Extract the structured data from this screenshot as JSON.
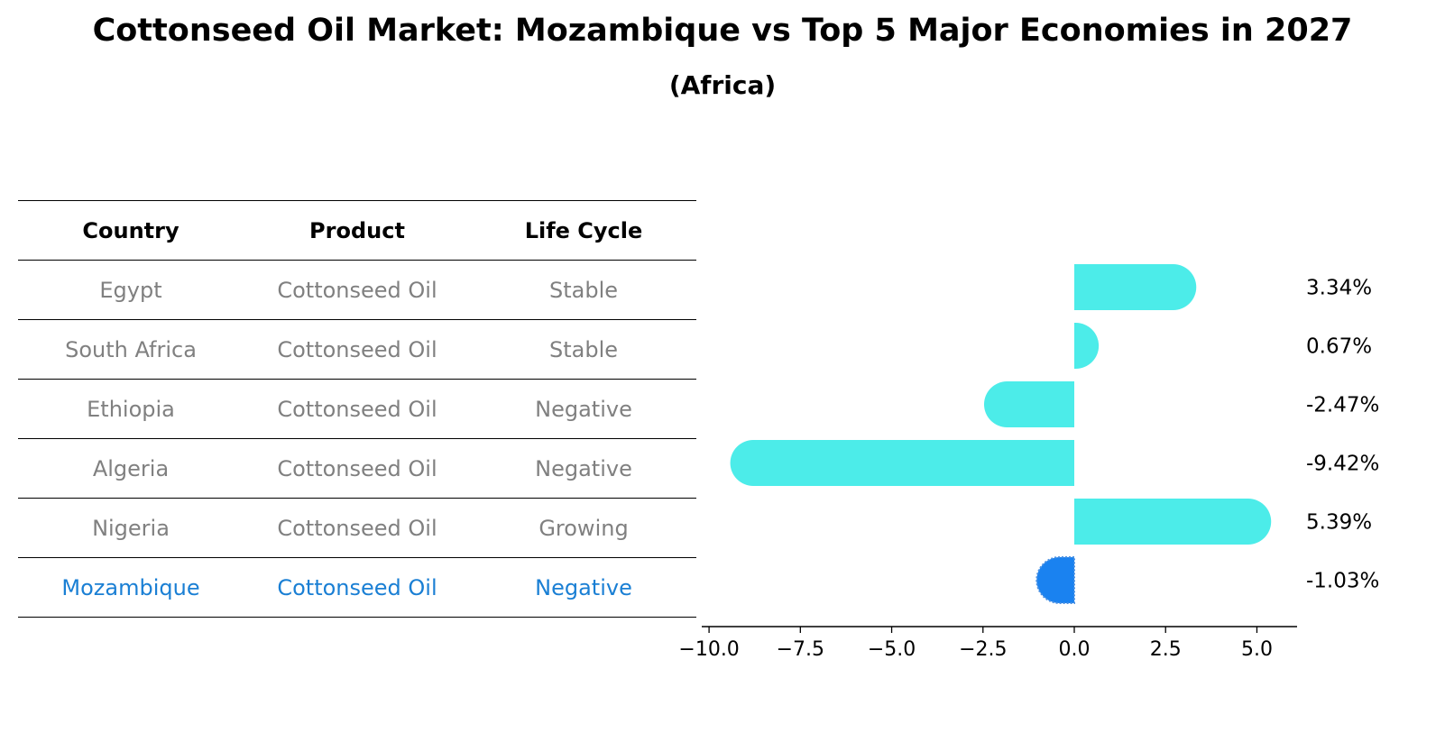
{
  "title": "Cottonseed Oil Market: Mozambique vs Top 5 Major Economies in 2027",
  "subtitle": "(Africa)",
  "table": {
    "headers": [
      "Country",
      "Product",
      "Life Cycle"
    ],
    "rows": [
      {
        "country": "Egypt",
        "product": "Cottonseed Oil",
        "life_cycle": "Stable"
      },
      {
        "country": "South Africa",
        "product": "Cottonseed Oil",
        "life_cycle": "Stable"
      },
      {
        "country": "Ethiopia",
        "product": "Cottonseed Oil",
        "life_cycle": "Negative"
      },
      {
        "country": "Algeria",
        "product": "Cottonseed Oil",
        "life_cycle": "Negative"
      },
      {
        "country": "Nigeria",
        "product": "Cottonseed Oil",
        "life_cycle": "Growing"
      },
      {
        "country": "Mozambique",
        "product": "Cottonseed Oil",
        "life_cycle": "Negative"
      }
    ]
  },
  "chart_data": {
    "type": "bar",
    "orientation": "horizontal",
    "categories": [
      "Egypt",
      "South Africa",
      "Ethiopia",
      "Algeria",
      "Nigeria",
      "Mozambique"
    ],
    "values": [
      3.34,
      0.67,
      -2.47,
      -9.42,
      5.39,
      -1.03
    ],
    "value_labels": [
      "3.34%",
      "0.67%",
      "-2.47%",
      "-9.42%",
      "5.39%",
      "-1.03%"
    ],
    "highlight": "Mozambique",
    "xlim": [
      -10.2,
      6.1
    ],
    "xticks": [
      -10.0,
      -7.5,
      -5.0,
      -2.5,
      0.0,
      2.5,
      5.0
    ],
    "xtick_labels": [
      "−10.0",
      "−7.5",
      "−5.0",
      "−2.5",
      "0.0",
      "2.5",
      "5.0"
    ],
    "colors": {
      "default": "#4cece9",
      "highlight": "#1a82f0"
    }
  },
  "colors": {
    "muted_text": "#808080",
    "highlight_text": "#1a7fd4"
  }
}
